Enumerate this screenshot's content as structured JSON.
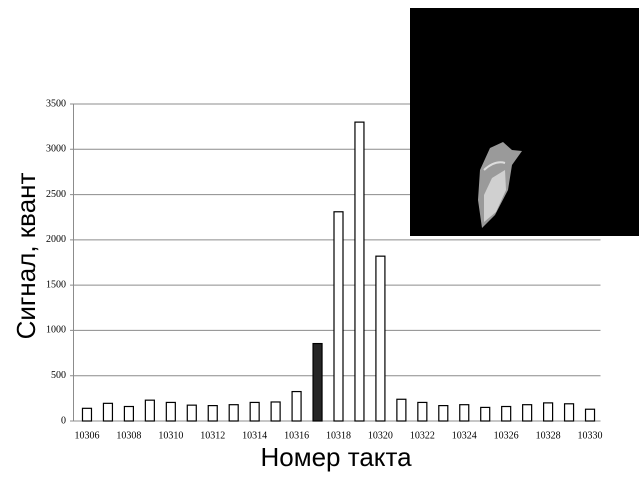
{
  "chart_data": {
    "type": "bar",
    "x_label": "Номер такта",
    "y_label": "Сигнал, квант",
    "categories": [
      "10306",
      null,
      "10308",
      null,
      "10310",
      null,
      "10312",
      null,
      "10314",
      null,
      "10316",
      null,
      "10318",
      null,
      "10320",
      null,
      "10322",
      null,
      "10324",
      null,
      "10326",
      null,
      "10328",
      null,
      "10330"
    ],
    "values": [
      140,
      195,
      160,
      230,
      205,
      175,
      170,
      180,
      205,
      210,
      325,
      855,
      2310,
      3300,
      1820,
      240,
      205,
      170,
      180,
      150,
      160,
      180,
      200,
      190,
      130
    ],
    "colors": [
      "#ffffff",
      "#ffffff",
      "#ffffff",
      "#ffffff",
      "#ffffff",
      "#ffffff",
      "#ffffff",
      "#ffffff",
      "#ffffff",
      "#ffffff",
      "#ffffff",
      "#262626",
      "#ffffff",
      "#ffffff",
      "#ffffff",
      "#ffffff",
      "#ffffff",
      "#ffffff",
      "#ffffff",
      "#ffffff",
      "#ffffff",
      "#ffffff",
      "#ffffff",
      "#ffffff",
      "#ffffff"
    ],
    "edge_color": "#000000",
    "ylim": [
      0,
      3500
    ],
    "yticks": [
      0,
      500,
      1000,
      1500,
      2000,
      2500,
      3000,
      3500
    ],
    "grid": true
  }
}
